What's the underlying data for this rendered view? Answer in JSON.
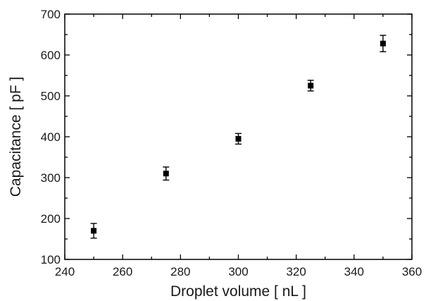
{
  "chart_data": {
    "type": "scatter",
    "xlabel": "Droplet volume [ nL ]",
    "ylabel": "Capacitance [ pF ]",
    "xlim": [
      240,
      360
    ],
    "ylim": [
      100,
      700
    ],
    "xticks": [
      240,
      260,
      280,
      300,
      320,
      340,
      360
    ],
    "yticks": [
      100,
      200,
      300,
      400,
      500,
      600,
      700
    ],
    "grid": false,
    "marker": "square",
    "error_bars": true,
    "series": [
      {
        "x": [
          250,
          275,
          300,
          325,
          350
        ],
        "y": [
          170,
          310,
          395,
          525,
          628
        ],
        "yerr": [
          18,
          16,
          13,
          13,
          20
        ]
      }
    ]
  }
}
